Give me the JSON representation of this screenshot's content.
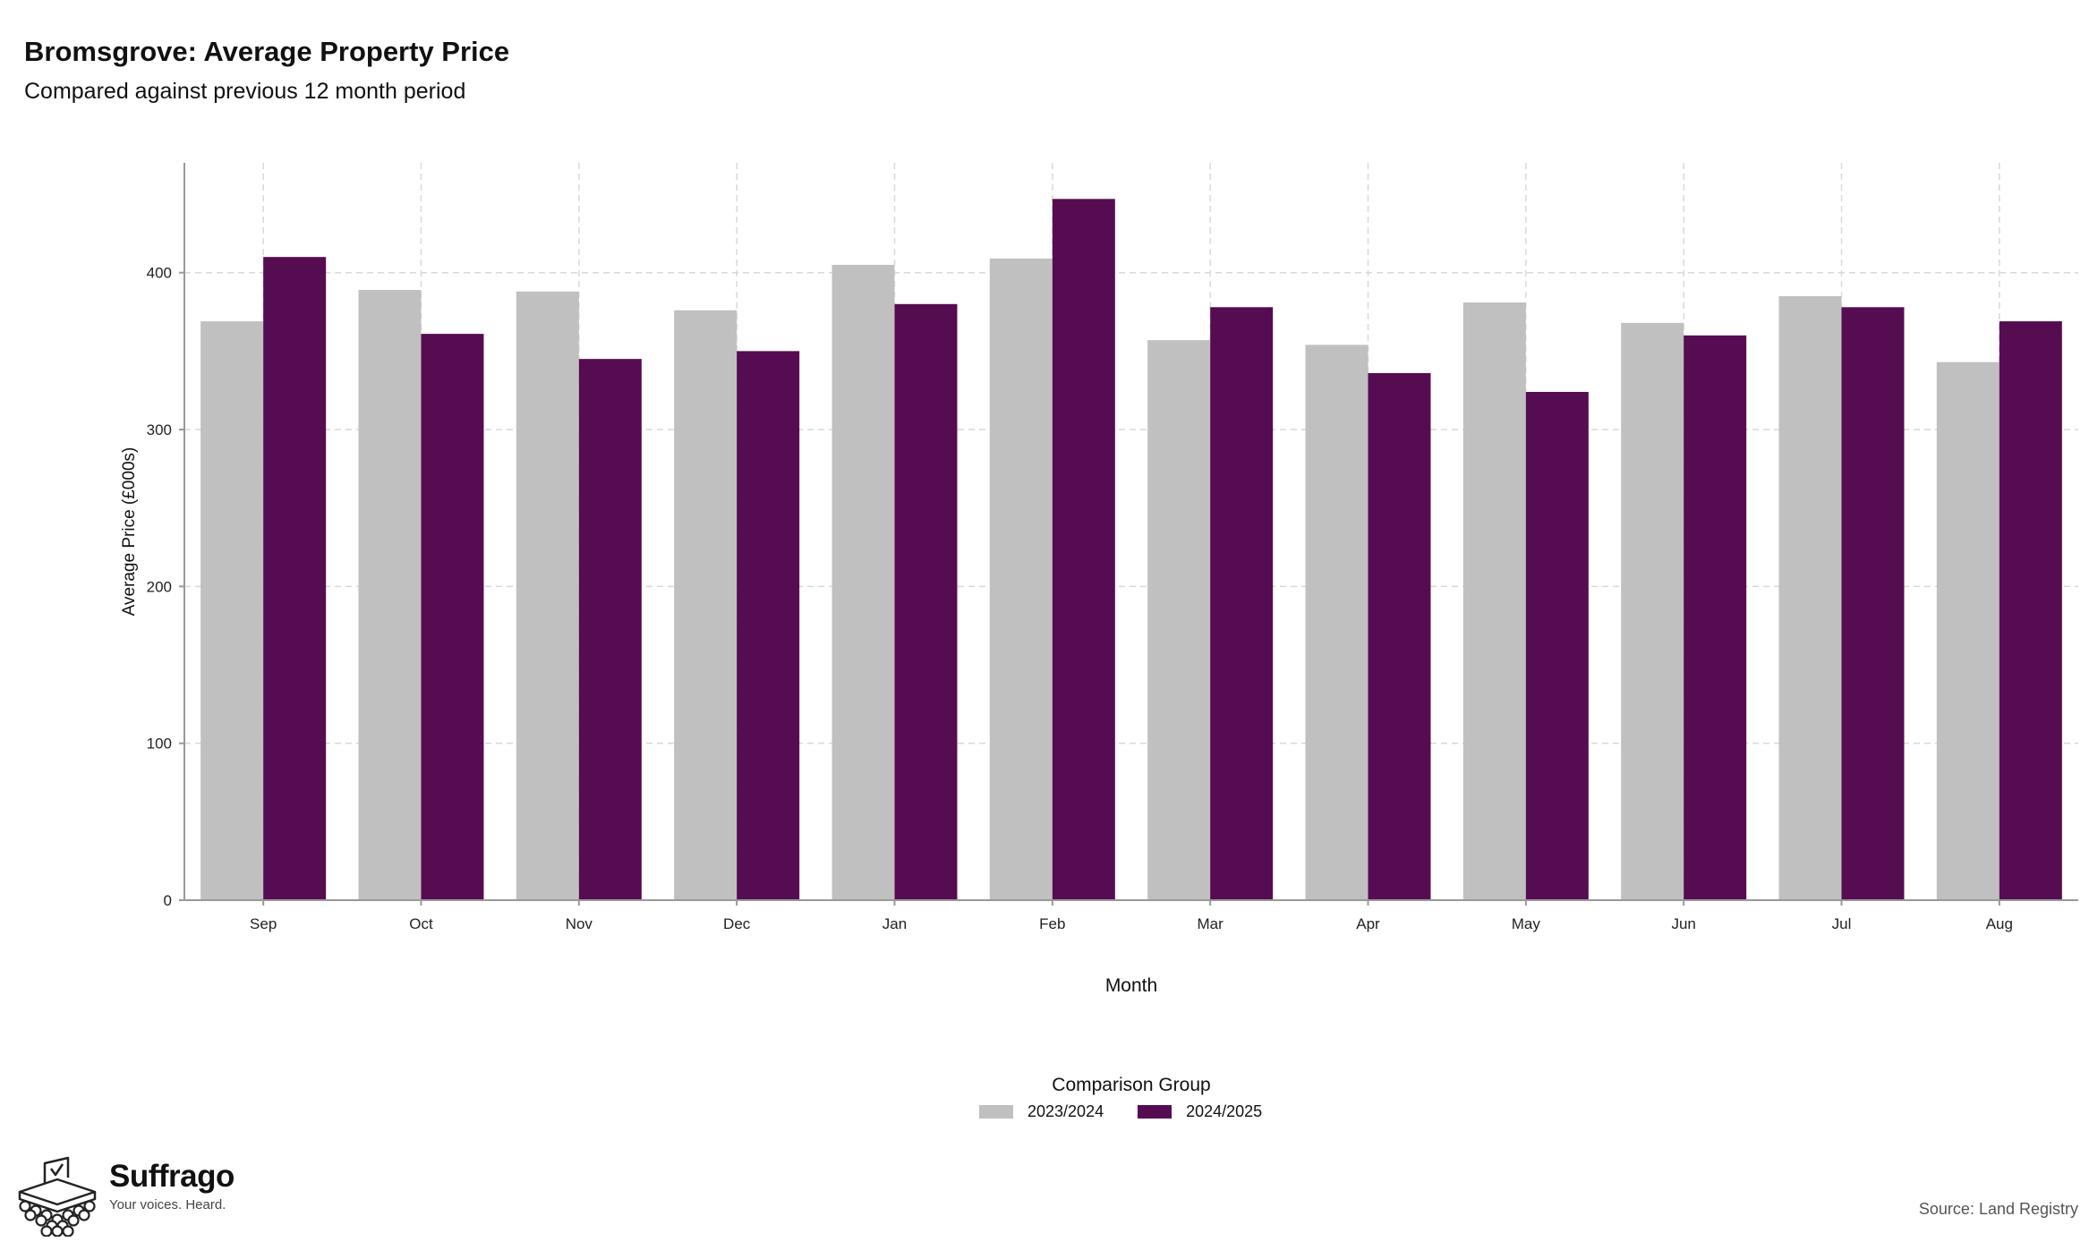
{
  "chart_data": {
    "type": "bar",
    "title": "Bromsgrove: Average Property Price",
    "subtitle": "Compared against previous 12 month period",
    "xlabel": "Month",
    "ylabel": "Average Price (£000s)",
    "categories": [
      "Sep",
      "Oct",
      "Nov",
      "Dec",
      "Jan",
      "Feb",
      "Mar",
      "Apr",
      "May",
      "Jun",
      "Jul",
      "Aug"
    ],
    "series": [
      {
        "name": "2023/2024",
        "color": "#c0c0c0",
        "values": [
          369,
          389,
          388,
          376,
          405,
          409,
          357,
          354,
          381,
          368,
          385,
          343
        ]
      },
      {
        "name": "2024/2025",
        "color": "#560c51",
        "values": [
          410,
          361,
          345,
          350,
          380,
          447,
          378,
          336,
          324,
          360,
          378,
          369
        ]
      }
    ],
    "yticks": [
      0,
      100,
      200,
      300,
      400
    ],
    "ylim": [
      0,
      470
    ],
    "grid": true,
    "legend": {
      "title": "Comparison Group",
      "position": "bottom"
    }
  },
  "logo": {
    "name": "Suffrago",
    "tagline": "Your voices. Heard."
  },
  "source": "Source: Land Registry"
}
